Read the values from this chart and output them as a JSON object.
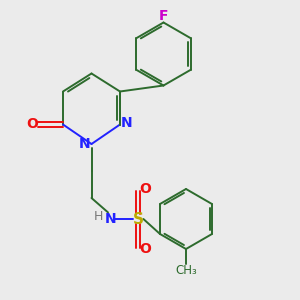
{
  "background_color": "#ebebeb",
  "bond_color": "#2d6b2d",
  "n_color": "#2222ff",
  "o_color": "#ee1111",
  "s_color": "#bbaa00",
  "f_color": "#cc00cc",
  "h_color": "#777777",
  "figsize": [
    3.0,
    3.0
  ],
  "dpi": 100,
  "xlim": [
    0,
    10
  ],
  "ylim": [
    0,
    10
  ]
}
